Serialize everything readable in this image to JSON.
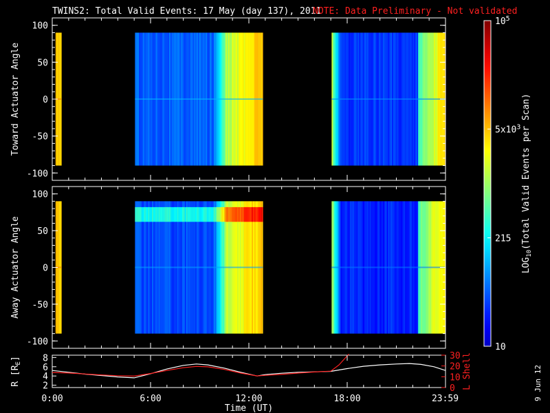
{
  "title": "TWINS2: Total Valid Events: 17 May (day 137), 2011",
  "note": "NOTE: Data Preliminary - Not validated",
  "stamp": "9 Jun 12",
  "colors": {
    "background": "#000000",
    "axis": "#ffffff",
    "note": "#ff2020",
    "r_line": "#ffffff",
    "lshell_line": "#ff2020"
  },
  "chart_data": [
    {
      "type": "heatmap",
      "name": "toward-panel",
      "ylabel": "Toward Actuator Angle",
      "ylim": [
        -110,
        110
      ],
      "yticks": [
        100,
        50,
        0,
        -50,
        -100
      ],
      "xlim_hours": [
        0,
        24
      ],
      "angle_range": [
        -90,
        90
      ],
      "blocks": [
        {
          "start": 0.2,
          "end": 0.55,
          "base": 0.68,
          "band": null
        },
        {
          "start": 5.05,
          "end": 12.85,
          "base": 0.22,
          "band": null
        },
        {
          "start": 17.05,
          "end": 24.0,
          "base": 0.18,
          "band": null
        }
      ],
      "ramps": [
        {
          "start": 9.8,
          "end": 10.6,
          "from": 0.22,
          "to": 0.55
        },
        {
          "start": 10.6,
          "end": 12.85,
          "from": 0.55,
          "to": 0.7
        },
        {
          "start": 17.05,
          "end": 17.5,
          "from": 0.55,
          "to": 0.22
        },
        {
          "start": 22.3,
          "end": 24.0,
          "from": 0.45,
          "to": 0.68
        }
      ]
    },
    {
      "type": "heatmap",
      "name": "away-panel",
      "ylabel": "Away Actuator Angle",
      "ylim": [
        -110,
        110
      ],
      "yticks": [
        100,
        50,
        0,
        -50,
        -100
      ],
      "xlim_hours": [
        0,
        24
      ],
      "angle_range": [
        -90,
        90
      ],
      "blocks": [
        {
          "start": 0.2,
          "end": 0.55,
          "base": 0.68,
          "band": null
        },
        {
          "start": 5.05,
          "end": 12.85,
          "base": 0.2,
          "band": [
            62,
            82
          ]
        },
        {
          "start": 17.05,
          "end": 24.0,
          "base": 0.16,
          "band": null
        }
      ],
      "ramps": [
        {
          "start": 9.8,
          "end": 10.6,
          "from": 0.2,
          "to": 0.55
        },
        {
          "start": 10.6,
          "end": 12.85,
          "from": 0.55,
          "to": 0.7
        },
        {
          "start": 17.05,
          "end": 17.5,
          "from": 0.55,
          "to": 0.2
        },
        {
          "start": 22.3,
          "end": 24.0,
          "from": 0.45,
          "to": 0.68
        }
      ]
    },
    {
      "type": "line",
      "name": "orbit-panel",
      "ylabel": "R [RE]",
      "ylabel_base": "R [R",
      "ylabel_sub": "E",
      "ylabel_close": "]",
      "ylabel2": "L Shell",
      "ylim": [
        1.5,
        8.5
      ],
      "yticks": [
        2,
        4,
        6,
        8
      ],
      "y2lim": [
        0,
        30
      ],
      "y2ticks": [
        0,
        10,
        20,
        30
      ],
      "xlim_hours": [
        0,
        24
      ],
      "xticks": [
        "0:00",
        "6:00",
        "12:00",
        "18:00",
        "23:59"
      ],
      "xtick_hours": [
        0,
        6,
        12,
        18,
        23.98
      ],
      "xlabel": "Time (UT)",
      "series": [
        {
          "name": "R",
          "axis": "left",
          "x": [
            0,
            1,
            2,
            3,
            4,
            5,
            6,
            7,
            8,
            8.8,
            9.5,
            10.5,
            11.5,
            12.5,
            13,
            14,
            15,
            16,
            17,
            18,
            19,
            20,
            21,
            21.8,
            22.5,
            23.3,
            24
          ],
          "y": [
            5.2,
            4.8,
            4.4,
            4.1,
            3.8,
            3.6,
            4.5,
            5.5,
            6.3,
            6.6,
            6.4,
            5.7,
            4.8,
            4.0,
            4.3,
            4.6,
            4.8,
            4.9,
            5.0,
            5.6,
            6.1,
            6.4,
            6.6,
            6.7,
            6.5,
            6.0,
            5.2
          ]
        },
        {
          "name": "L Shell",
          "axis": "right",
          "x": [
            0,
            1,
            2,
            3,
            4,
            5,
            6,
            7,
            8,
            8.8,
            9.5,
            10.5,
            11.5,
            12.5,
            13,
            14,
            15,
            16,
            17,
            17.5,
            18.1
          ],
          "y": [
            14,
            13.5,
            12.6,
            11.7,
            11,
            10.6,
            13,
            15.8,
            18.4,
            19.6,
            19.2,
            16.8,
            13.4,
            10.8,
            11.3,
            12.2,
            13.4,
            14.4,
            15.2,
            21,
            31
          ]
        }
      ]
    },
    {
      "type": "heatmap",
      "name": "colorbar",
      "label": "LOG10(Total Valid Events per Scan)",
      "label_base": "LOG",
      "label_sub": "10",
      "label_rest": "(Total Valid Events per Scan)",
      "ticks": [
        {
          "value": 10,
          "label": "10",
          "frac": 0.0
        },
        {
          "value": 215,
          "label": "215",
          "frac": 0.333
        },
        {
          "value": 5000,
          "label": "5x10",
          "exp": "3",
          "frac": 0.667
        },
        {
          "value": 100000,
          "label": "10",
          "exp": "5",
          "frac": 1.0
        }
      ]
    }
  ]
}
